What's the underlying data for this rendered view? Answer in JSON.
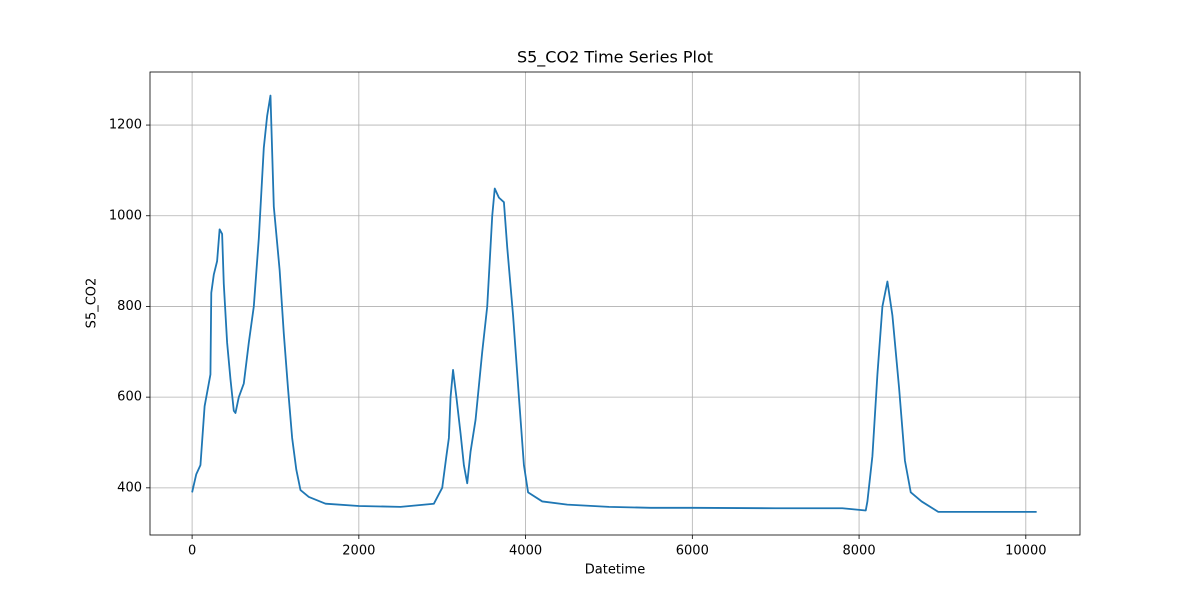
{
  "chart_data": {
    "type": "line",
    "title": "S5_CO2 Time Series Plot",
    "x_label": "Datetime",
    "y_label": "S5_CO2",
    "color": "#1f77b4",
    "grid": true,
    "x": [
      0,
      50,
      100,
      150,
      200,
      220,
      230,
      260,
      300,
      330,
      360,
      380,
      420,
      460,
      500,
      520,
      560,
      620,
      680,
      740,
      800,
      860,
      900,
      940,
      980,
      1050,
      1100,
      1150,
      1200,
      1250,
      1300,
      1400,
      1600,
      2000,
      2500,
      2900,
      3000,
      3050,
      3080,
      3100,
      3130,
      3170,
      3220,
      3260,
      3300,
      3340,
      3400,
      3480,
      3540,
      3600,
      3630,
      3680,
      3740,
      3780,
      3850,
      3920,
      3980,
      4030,
      4200,
      4500,
      5000,
      5500,
      6000,
      7000,
      7800,
      8080,
      8100,
      8160,
      8220,
      8280,
      8340,
      8400,
      8480,
      8550,
      8620,
      8750,
      8950,
      10130
    ],
    "values": [
      390,
      430,
      450,
      580,
      630,
      650,
      830,
      870,
      900,
      970,
      960,
      850,
      720,
      640,
      570,
      565,
      600,
      630,
      720,
      800,
      950,
      1150,
      1220,
      1265,
      1020,
      880,
      740,
      620,
      510,
      440,
      395,
      380,
      365,
      360,
      358,
      365,
      400,
      470,
      510,
      600,
      660,
      600,
      520,
      450,
      410,
      480,
      550,
      700,
      800,
      1000,
      1060,
      1040,
      1030,
      930,
      780,
      600,
      450,
      390,
      370,
      363,
      358,
      356,
      356,
      355,
      355,
      350,
      370,
      470,
      650,
      800,
      855,
      780,
      620,
      460,
      390,
      370,
      347,
      347
    ],
    "xlim": [
      -505,
      10650
    ],
    "ylim": [
      296,
      1317
    ],
    "xticks": [
      0,
      2000,
      4000,
      6000,
      8000,
      10000
    ],
    "yticks": [
      400,
      600,
      800,
      1000,
      1200
    ]
  }
}
